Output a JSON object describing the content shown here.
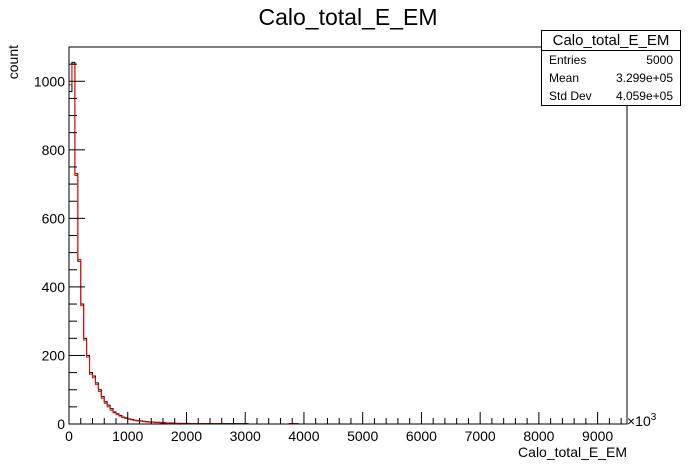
{
  "chart_data": {
    "type": "histogram",
    "title": "Calo_total_E_EM",
    "xlabel": "Calo_total_E_EM",
    "ylabel": "count",
    "x_multiplier_label": "×10",
    "x_multiplier_exp": "3",
    "xlim": [
      0,
      9500
    ],
    "ylim": [
      0,
      1100
    ],
    "x_ticks": [
      0,
      1000,
      2000,
      3000,
      4000,
      5000,
      6000,
      7000,
      8000,
      9000
    ],
    "x_tick_labels": [
      "0",
      "1000",
      "2000",
      "3000",
      "4000",
      "5000",
      "6000",
      "7000",
      "8000",
      "9000"
    ],
    "y_ticks": [
      0,
      200,
      400,
      600,
      800,
      1000
    ],
    "y_tick_labels": [
      "0",
      "200",
      "400",
      "600",
      "800",
      "1000"
    ],
    "bin_width": 50,
    "series": [
      {
        "color": "#000000",
        "values": [
          970,
          1055,
          730,
          475,
          350,
          250,
          200,
          150,
          140,
          120,
          100,
          80,
          65,
          55,
          45,
          35,
          30,
          25,
          20,
          18,
          15,
          13,
          11,
          10,
          9,
          8,
          7,
          6,
          6,
          5,
          5,
          4,
          4,
          3,
          3,
          3,
          2,
          2,
          2,
          2,
          2,
          1,
          1,
          1,
          1,
          1,
          1,
          1,
          1,
          1,
          1,
          1,
          1,
          1,
          1,
          1,
          1,
          1,
          1,
          1,
          1,
          0,
          0,
          0,
          0,
          0,
          0,
          0,
          0,
          0,
          0,
          0,
          0,
          0,
          0,
          1,
          1,
          1,
          0,
          0,
          0,
          0,
          0,
          0,
          0,
          0,
          0,
          0,
          0,
          0,
          0,
          0,
          0,
          0,
          0,
          0,
          0,
          0,
          0,
          0,
          0,
          0,
          0,
          0,
          0,
          0,
          0,
          0,
          0,
          0,
          0,
          0,
          0,
          0,
          0,
          0,
          0,
          0,
          0,
          0,
          0,
          0,
          0,
          0,
          0,
          0,
          0,
          0,
          0,
          0,
          0,
          0,
          0,
          0,
          0,
          0,
          0,
          0,
          0,
          0,
          0,
          0,
          0,
          0,
          0,
          0,
          0,
          0,
          0,
          0,
          0,
          0,
          0,
          0,
          0,
          0,
          0,
          0,
          0,
          0,
          0,
          0,
          0,
          0,
          0,
          0,
          0,
          0,
          0,
          0,
          0,
          0,
          0,
          0,
          0,
          0,
          0,
          0,
          0,
          0,
          0,
          0,
          0,
          0,
          0,
          0
        ]
      },
      {
        "color": "#ff0000",
        "values": [
          990,
          1050,
          725,
          480,
          345,
          245,
          195,
          145,
          135,
          115,
          95,
          75,
          60,
          50,
          40,
          33,
          28,
          23,
          19,
          16,
          14,
          12,
          10,
          9,
          8,
          7,
          6,
          5,
          5,
          4,
          4,
          3,
          3,
          3,
          2,
          2,
          2,
          2,
          1,
          1,
          1,
          1,
          1,
          1,
          1,
          1,
          1,
          1,
          1,
          1,
          1,
          1,
          1,
          0,
          0,
          0,
          0,
          0,
          0,
          0,
          0,
          0,
          0,
          0,
          0,
          0,
          0,
          0,
          0,
          0,
          0,
          0,
          0,
          0,
          0,
          1,
          1,
          1,
          0,
          0,
          0,
          0,
          0,
          0,
          0,
          0,
          0,
          0,
          0,
          0,
          0,
          0,
          0,
          0,
          0,
          0,
          0,
          0,
          0,
          0,
          0,
          0,
          0,
          0,
          0,
          0,
          0,
          0,
          0,
          0,
          0,
          0,
          0,
          0,
          0,
          0,
          0,
          0,
          0,
          0,
          0,
          0,
          0,
          0,
          0,
          0,
          0,
          0,
          0,
          0,
          0,
          0,
          0,
          0,
          0,
          0,
          0,
          0,
          0,
          0,
          0,
          0,
          0,
          0,
          0,
          0,
          0,
          0,
          0,
          0,
          0,
          0,
          0,
          0,
          0,
          0,
          0,
          0,
          0,
          0,
          0,
          0,
          0,
          0,
          0,
          0,
          0,
          0,
          0,
          0,
          0,
          0,
          0,
          0,
          0,
          0,
          0,
          0,
          0,
          0,
          0,
          0,
          0,
          0,
          0,
          0,
          0,
          0,
          0,
          0
        ]
      }
    ]
  },
  "stats_box": {
    "title": "Calo_total_E_EM",
    "rows": [
      {
        "label": "Entries",
        "value": "5000"
      },
      {
        "label": "Mean",
        "value": "3.299e+05"
      },
      {
        "label": "Std Dev",
        "value": "4.059e+05"
      }
    ]
  }
}
